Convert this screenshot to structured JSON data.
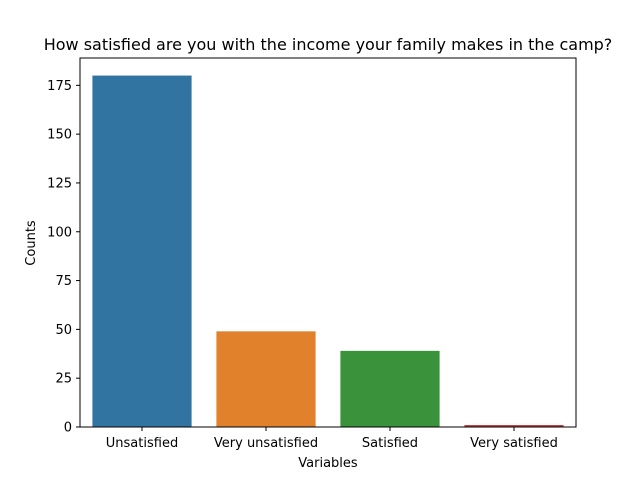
{
  "chart_data": {
    "type": "bar",
    "title": "How satisfied are you with the income your family makes in the camp?",
    "xlabel": "Variables",
    "ylabel": "Counts",
    "categories": [
      "Unsatisfied",
      "Very unsatisfied",
      "Satisfied",
      "Very satisfied"
    ],
    "values": [
      180,
      49,
      39,
      1
    ],
    "colors": [
      "#3274a1",
      "#e1812c",
      "#3a923a",
      "#c03d3e"
    ],
    "ylim": [
      0,
      189
    ],
    "yticks": [
      0,
      25,
      50,
      75,
      100,
      125,
      150,
      175
    ],
    "grid": false,
    "legend": "none"
  }
}
